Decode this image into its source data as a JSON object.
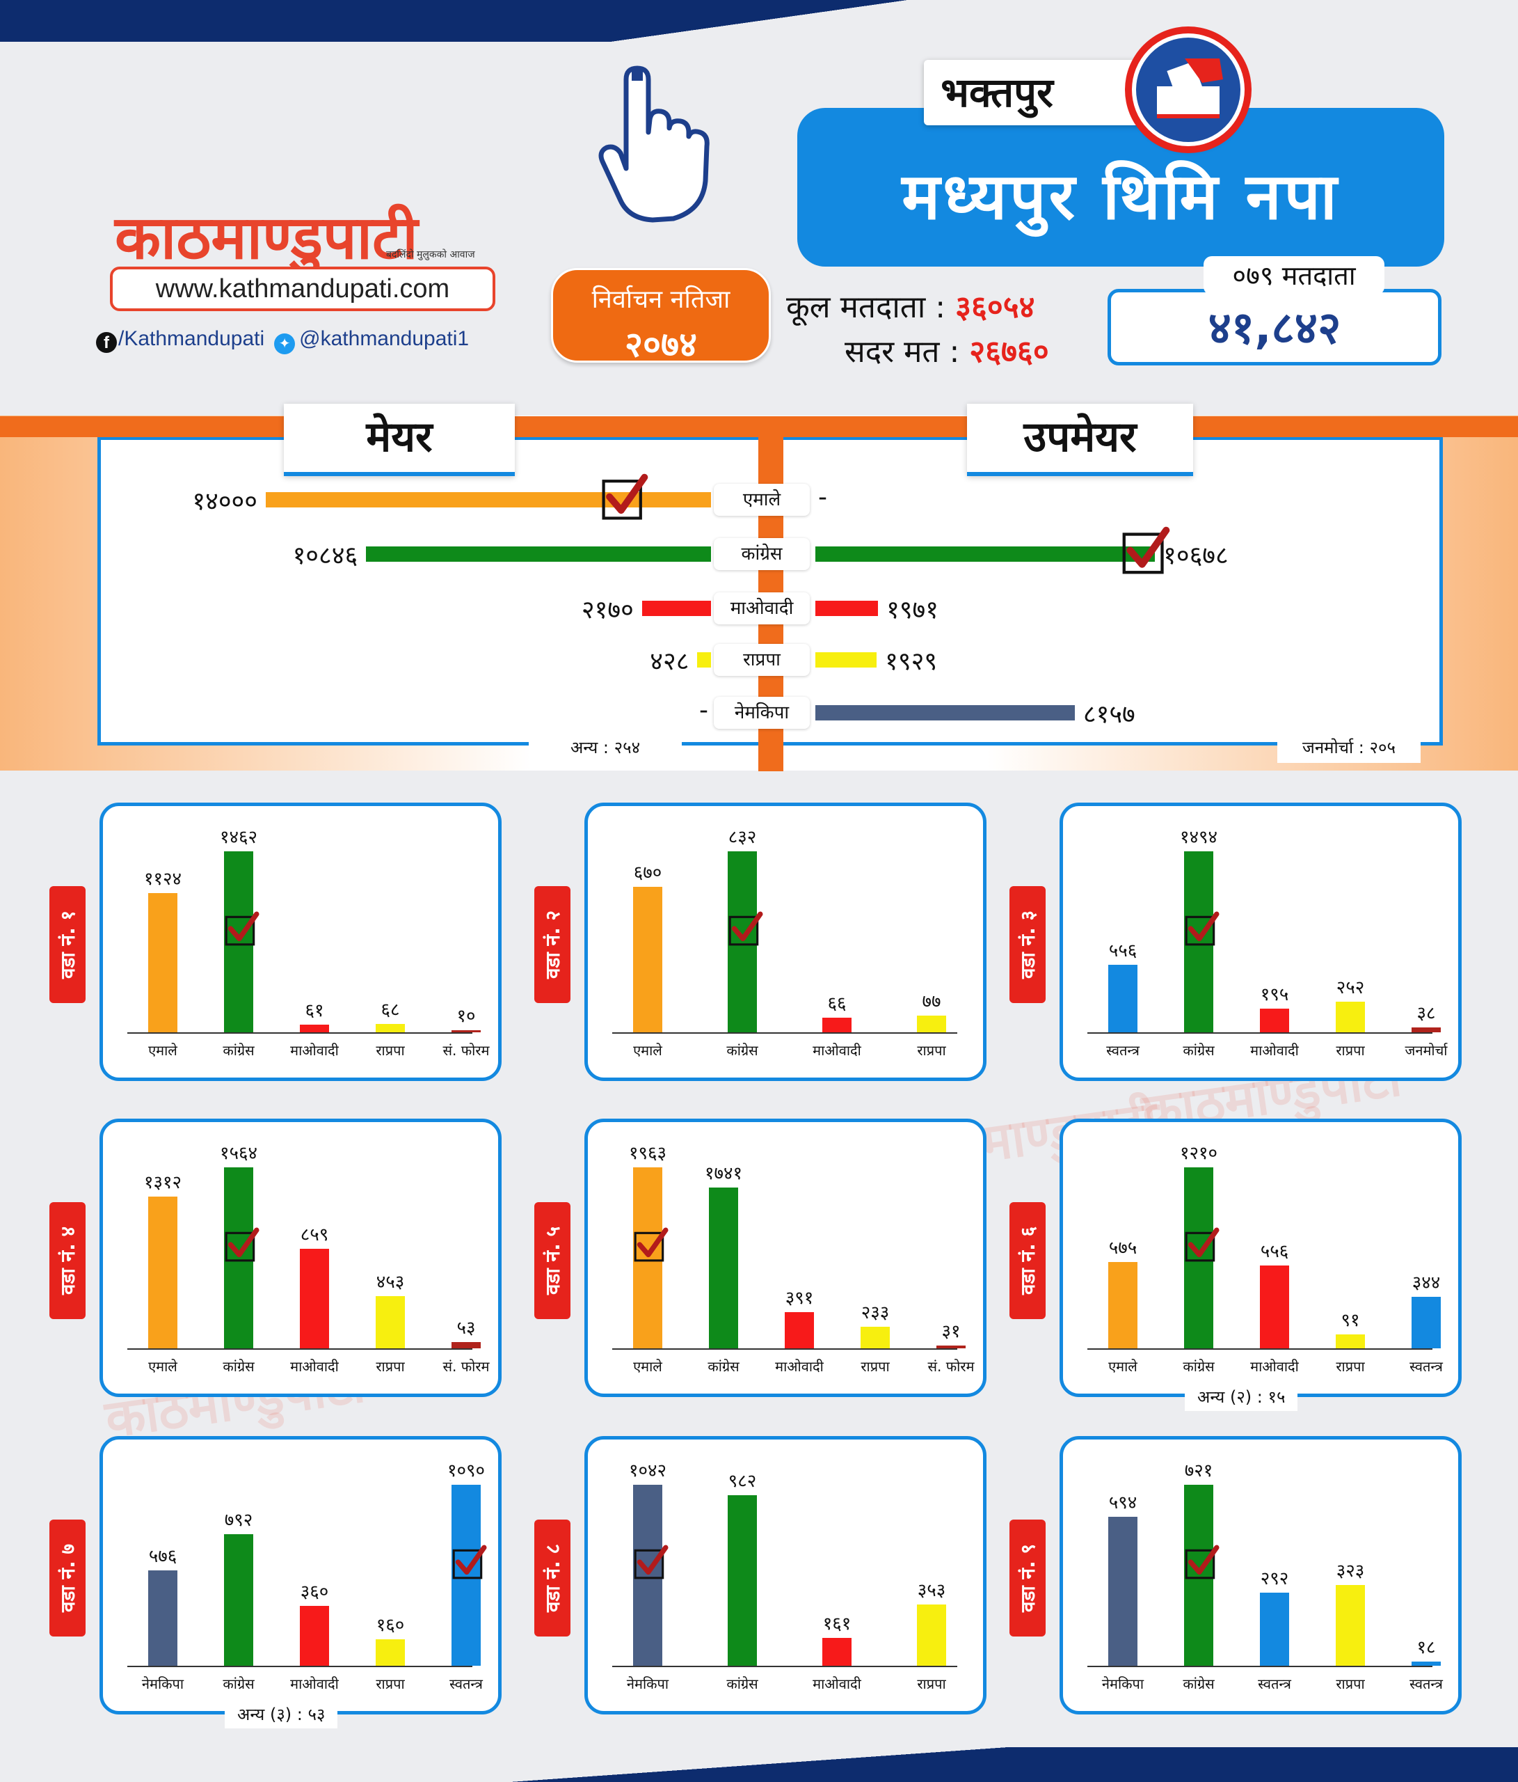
{
  "brand": {
    "logo_text": "काठमाण्डुपाटी",
    "tagline": "बदलिंदो मुलुकको आवाज",
    "url": "www.kathmandupati.com",
    "facebook": "/Kathmandupati",
    "twitter": "@kathmandupati1",
    "colors": {
      "accent": "#e8442c",
      "blue": "#1389e0",
      "orange": "#f06c1c",
      "red": "#e6231c"
    }
  },
  "header": {
    "badge_line1": "निर्वाचन नतिजा",
    "badge_line2": "२०७४",
    "district": "भक्तपुर",
    "municipality": "मध्यपुर थिमि नपा",
    "total_voters_label": "कूल मतदाता :",
    "total_voters": "३६०५४",
    "valid_votes_label": "सदर मत :",
    "valid_votes": "२६७६०",
    "voters_079_label": "०७९ मतदाता",
    "voters_079": "४१,८४२"
  },
  "chart_data": [
    {
      "type": "bar",
      "title": "मेयर / उपमेयर",
      "mayor_label": "मेयर",
      "deputy_label": "उपमेयर",
      "categories": [
        "एमाले",
        "कांग्रेस",
        "माओवादी",
        "राप्रपा",
        "नेमकिपा"
      ],
      "series": [
        {
          "name": "मेयर",
          "values": [
            14000,
            10846,
            2170,
            428,
            null
          ],
          "labels": [
            "१४०००",
            "१०८४६",
            "२१७०",
            "४२८",
            "-"
          ]
        },
        {
          "name": "उपमेयर",
          "values": [
            null,
            10678,
            1971,
            1929,
            8157
          ],
          "labels": [
            "-",
            "१०६७८",
            "१९७१",
            "१९२९",
            "८१५७"
          ]
        }
      ],
      "colors": [
        "#f9a11b",
        "#0e8a1a",
        "#f71a1a",
        "#f7ef0f",
        "#4a5f85"
      ],
      "winners": {
        "mayor": 0,
        "deputy": 1
      },
      "notes": {
        "mayor_other": "अन्य : २५४",
        "deputy_other": "जनमोर्चा : २०५"
      }
    },
    {
      "type": "bar",
      "ward": "वडा नं. १",
      "categories": [
        "एमाले",
        "कांग्रेस",
        "माओवादी",
        "राप्रपा",
        "सं. फोरम"
      ],
      "values": [
        1124,
        1462,
        61,
        68,
        10
      ],
      "labels": [
        "११२४",
        "१४६२",
        "६१",
        "६८",
        "१०"
      ],
      "colors": [
        "#f9a11b",
        "#0e8a1a",
        "#f71a1a",
        "#f7ef0f",
        "#b0231c"
      ],
      "winner": 1
    },
    {
      "type": "bar",
      "ward": "वडा नं. २",
      "categories": [
        "एमाले",
        "कांग्रेस",
        "माओवादी",
        "राप्रपा"
      ],
      "values": [
        670,
        832,
        66,
        77
      ],
      "labels": [
        "६७०",
        "८३२",
        "६६",
        "७७"
      ],
      "colors": [
        "#f9a11b",
        "#0e8a1a",
        "#f71a1a",
        "#f7ef0f"
      ],
      "winner": 1
    },
    {
      "type": "bar",
      "ward": "वडा नं. ३",
      "categories": [
        "स्वतन्त्र",
        "कांग्रेस",
        "माओवादी",
        "राप्रपा",
        "जनमोर्चा"
      ],
      "values": [
        556,
        1494,
        195,
        252,
        38
      ],
      "labels": [
        "५५६",
        "१४९४",
        "१९५",
        "२५२",
        "३८"
      ],
      "colors": [
        "#1389e0",
        "#0e8a1a",
        "#f71a1a",
        "#f7ef0f",
        "#b0231c"
      ],
      "winner": 1
    },
    {
      "type": "bar",
      "ward": "वडा नं. ४",
      "categories": [
        "एमाले",
        "कांग्रेस",
        "माओवादी",
        "राप्रपा",
        "सं. फोरम"
      ],
      "values": [
        1312,
        1564,
        859,
        453,
        53
      ],
      "labels": [
        "१३१२",
        "१५६४",
        "८५९",
        "४५३",
        "५३"
      ],
      "colors": [
        "#f9a11b",
        "#0e8a1a",
        "#f71a1a",
        "#f7ef0f",
        "#b0231c"
      ],
      "winner": 1
    },
    {
      "type": "bar",
      "ward": "वडा नं. ५",
      "categories": [
        "एमाले",
        "कांग्रेस",
        "माओवादी",
        "राप्रपा",
        "सं. फोरम"
      ],
      "values": [
        1963,
        1741,
        391,
        233,
        31
      ],
      "labels": [
        "१९६३",
        "१७४१",
        "३९१",
        "२३३",
        "३१"
      ],
      "colors": [
        "#f9a11b",
        "#0e8a1a",
        "#f71a1a",
        "#f7ef0f",
        "#b0231c"
      ],
      "winner": 0
    },
    {
      "type": "bar",
      "ward": "वडा नं. ६",
      "categories": [
        "एमाले",
        "कांग्रेस",
        "माओवादी",
        "राप्रपा",
        "स्वतन्त्र"
      ],
      "values": [
        575,
        1210,
        556,
        91,
        344
      ],
      "labels": [
        "५७५",
        "१२१०",
        "५५६",
        "९१",
        "३४४"
      ],
      "colors": [
        "#f9a11b",
        "#0e8a1a",
        "#f71a1a",
        "#f7ef0f",
        "#1389e0"
      ],
      "winner": 1,
      "note": "अन्य (२) : १५"
    },
    {
      "type": "bar",
      "ward": "वडा नं. ७",
      "categories": [
        "नेमकिपा",
        "कांग्रेस",
        "माओवादी",
        "राप्रपा",
        "स्वतन्त्र"
      ],
      "values": [
        576,
        792,
        360,
        160,
        1090
      ],
      "labels": [
        "५७६",
        "७९२",
        "३६०",
        "१६०",
        "१०९०"
      ],
      "colors": [
        "#4a5f85",
        "#0e8a1a",
        "#f71a1a",
        "#f7ef0f",
        "#1389e0"
      ],
      "winner": 4,
      "note": "अन्य (३) : ५३"
    },
    {
      "type": "bar",
      "ward": "वडा नं. ८",
      "categories": [
        "नेमकिपा",
        "कांग्रेस",
        "माओवादी",
        "राप्रपा"
      ],
      "values": [
        1042,
        982,
        161,
        353
      ],
      "labels": [
        "१०४२",
        "९८२",
        "१६१",
        "३५३"
      ],
      "colors": [
        "#4a5f85",
        "#0e8a1a",
        "#f71a1a",
        "#f7ef0f"
      ],
      "winner": 0
    },
    {
      "type": "bar",
      "ward": "वडा नं. ९",
      "categories": [
        "नेमकिपा",
        "कांग्रेस",
        "स्वतन्त्र",
        "राप्रपा",
        "स्वतन्त्र"
      ],
      "values": [
        594,
        721,
        292,
        323,
        18
      ],
      "labels": [
        "५९४",
        "७२१",
        "२९२",
        "३२३",
        "१८"
      ],
      "colors": [
        "#4a5f85",
        "#0e8a1a",
        "#1389e0",
        "#f7ef0f",
        "#1389e0"
      ],
      "winner": 1
    }
  ]
}
